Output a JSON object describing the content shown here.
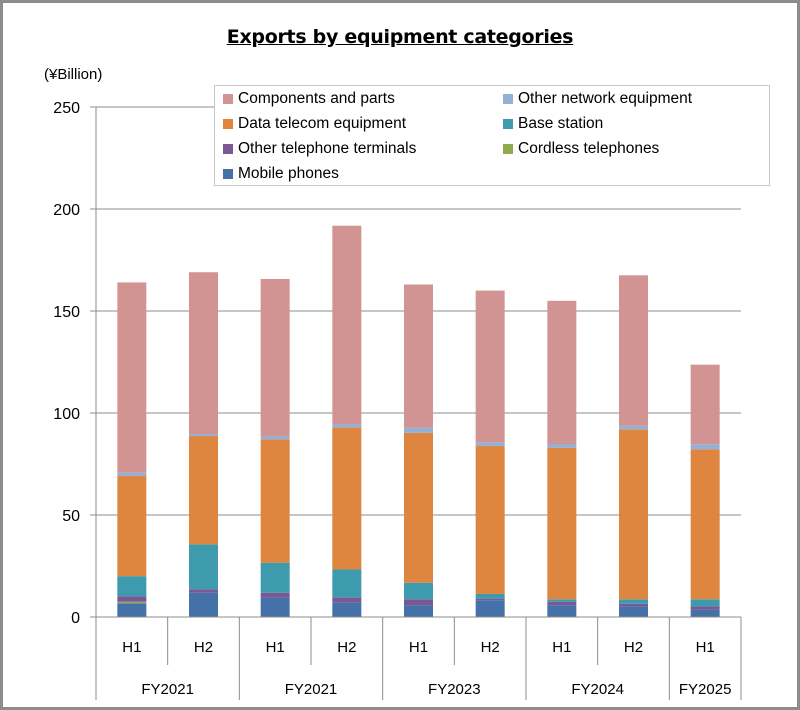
{
  "chart_data": {
    "type": "bar",
    "stacked": true,
    "title": "Exports by equipment categories",
    "ylabel": "(¥Billion)",
    "xlabel": "",
    "ylim": [
      0,
      250
    ],
    "yticks": [
      0,
      50,
      100,
      150,
      200,
      250
    ],
    "grid": true,
    "legend_position": "top-right",
    "categories": [
      "H1",
      "H2",
      "H1",
      "H2",
      "H1",
      "H2",
      "H1",
      "H2",
      "H1"
    ],
    "groups": [
      {
        "label": "FY2021",
        "span": 2
      },
      {
        "label": "FY2021",
        "span": 2
      },
      {
        "label": "FY2023",
        "span": 2
      },
      {
        "label": "FY2024",
        "span": 2
      },
      {
        "label": "FY2025",
        "span": 1
      }
    ],
    "series": [
      {
        "name": "Mobile phones",
        "color": "#4472a8",
        "values": [
          6.7,
          11.9,
          9.5,
          7.0,
          5.8,
          8.2,
          5.8,
          5.2,
          3.6
        ]
      },
      {
        "name": "Cordless telephones",
        "color": "#8fab4f",
        "values": [
          0.8,
          0,
          0,
          0,
          0,
          0,
          0,
          0,
          0
        ]
      },
      {
        "name": "Other telephone terminals",
        "color": "#7a5795",
        "values": [
          2.6,
          1.7,
          2.4,
          2.5,
          2.9,
          0.8,
          1.7,
          1.3,
          1.6
        ]
      },
      {
        "name": "Base station",
        "color": "#3e9bae",
        "values": [
          9.9,
          22.0,
          14.7,
          13.8,
          8.1,
          2.3,
          1.2,
          2.2,
          3.5
        ]
      },
      {
        "name": "Data telecom equipment",
        "color": "#de8540",
        "values": [
          49.1,
          53.1,
          60.5,
          69.7,
          73.5,
          72.5,
          74.3,
          83.3,
          73.5
        ]
      },
      {
        "name": "Other network equipment",
        "color": "#95b0d6",
        "values": [
          1.6,
          1.0,
          1.6,
          1.6,
          2.5,
          1.8,
          1.8,
          1.8,
          2.5
        ]
      },
      {
        "name": "Components and parts",
        "color": "#d29393",
        "values": [
          93.3,
          79.3,
          77.0,
          97.2,
          70.2,
          74.4,
          70.2,
          73.7,
          39.0
        ]
      }
    ],
    "legend_order": [
      "Components and parts",
      "Other network equipment",
      "Data telecom equipment",
      "Base station",
      "Other telephone terminals",
      "Cordless telephones",
      "Mobile phones"
    ]
  },
  "colors": {
    "grid": "#8c8c8c",
    "axis": "#8c8c8c",
    "frame": "#8c8c8c"
  }
}
